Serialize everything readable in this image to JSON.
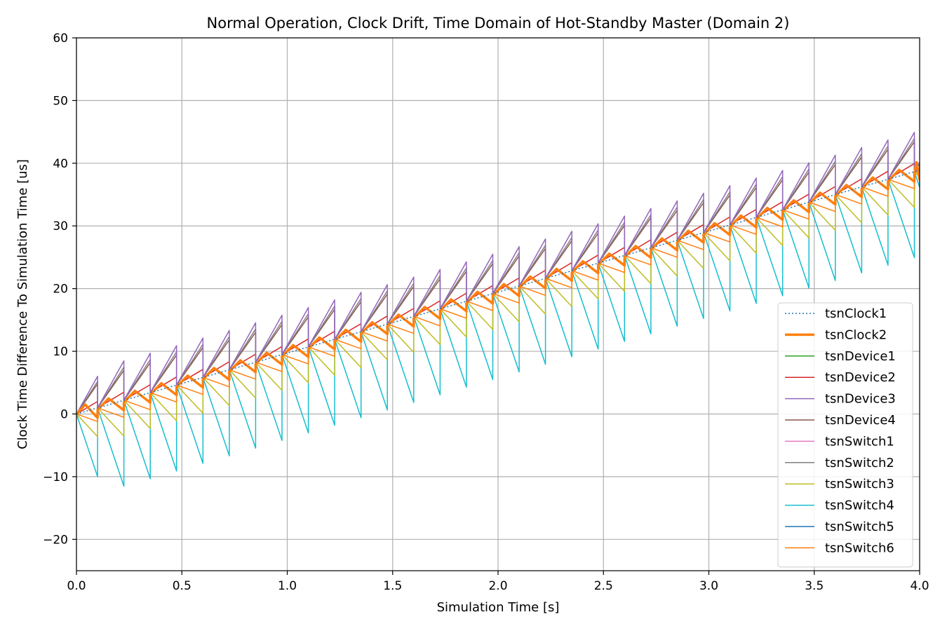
{
  "chart_data": {
    "type": "line",
    "title": "Normal Operation, Clock Drift, Time Domain of Hot-Standby Master (Domain 2)",
    "xlabel": "Simulation Time [s]",
    "ylabel": "Clock Time Difference To Simulation Time [us]",
    "xlim": [
      0,
      4
    ],
    "ylim": [
      -25,
      60
    ],
    "xticks": [
      0,
      0.5,
      1,
      1.5,
      2,
      2.5,
      3,
      3.5,
      4
    ],
    "xtick_labels": [
      "0.0",
      "0.5",
      "1.0",
      "1.5",
      "2.0",
      "2.5",
      "3.0",
      "3.5",
      "4.0"
    ],
    "yticks": [
      -20,
      -10,
      0,
      10,
      20,
      30,
      40,
      50,
      60
    ],
    "ytick_labels": [
      "−20",
      "−10",
      "0",
      "10",
      "20",
      "30",
      "40",
      "50",
      "60"
    ],
    "grid": true,
    "legend_position": "lower-right",
    "sync_period_s": 0.125,
    "sync_start_s": 0.1,
    "series": [
      {
        "name": "tsnClock1",
        "color": "#1f77b4",
        "style": "dotted",
        "width": 1.5,
        "kind": "reference",
        "end_offset_us": 38.9
      },
      {
        "name": "tsnClock2",
        "color": "#ff7f0e",
        "style": "solid",
        "width": 3.5,
        "kind": "sawtooth",
        "peak_offset_us": 1.5,
        "low_offset_us": -1.6,
        "pattern": "zigzag"
      },
      {
        "name": "tsnDevice1",
        "color": "#2ca02c",
        "style": "solid",
        "width": 1.5,
        "kind": "sawtooth",
        "drift_us_per_s": 0,
        "hidden": true
      },
      {
        "name": "tsnDevice2",
        "color": "#d62728",
        "style": "solid",
        "width": 1.5,
        "kind": "sawtooth",
        "drift_us_per_s": 20
      },
      {
        "name": "tsnDevice3",
        "color": "#9467bd",
        "style": "solid",
        "width": 1.5,
        "kind": "sawtooth",
        "drift_us_per_s": 60
      },
      {
        "name": "tsnDevice4",
        "color": "#8c564b",
        "style": "solid",
        "width": 1.5,
        "kind": "sawtooth",
        "drift_us_per_s": 48
      },
      {
        "name": "tsnSwitch1",
        "color": "#e377c2",
        "style": "solid",
        "width": 1.5,
        "kind": "sawtooth",
        "drift_us_per_s": 0,
        "hidden": true
      },
      {
        "name": "tsnSwitch2",
        "color": "#7f7f7f",
        "style": "solid",
        "width": 1.5,
        "kind": "sawtooth",
        "drift_us_per_s": 52
      },
      {
        "name": "tsnSwitch3",
        "color": "#bcbd22",
        "style": "solid",
        "width": 1.5,
        "kind": "sawtooth",
        "drift_us_per_s": -36
      },
      {
        "name": "tsnSwitch4",
        "color": "#17becf",
        "style": "solid",
        "width": 1.5,
        "kind": "sawtooth",
        "drift_us_per_s": -100
      },
      {
        "name": "tsnSwitch5",
        "color": "#1f77b4",
        "style": "solid",
        "width": 1.5,
        "kind": "sawtooth",
        "drift_us_per_s": 0,
        "hidden": true
      },
      {
        "name": "tsnSwitch6",
        "color": "#ff7f0e",
        "style": "solid",
        "width": 1.5,
        "kind": "sawtooth",
        "drift_us_per_s": -12
      }
    ]
  }
}
